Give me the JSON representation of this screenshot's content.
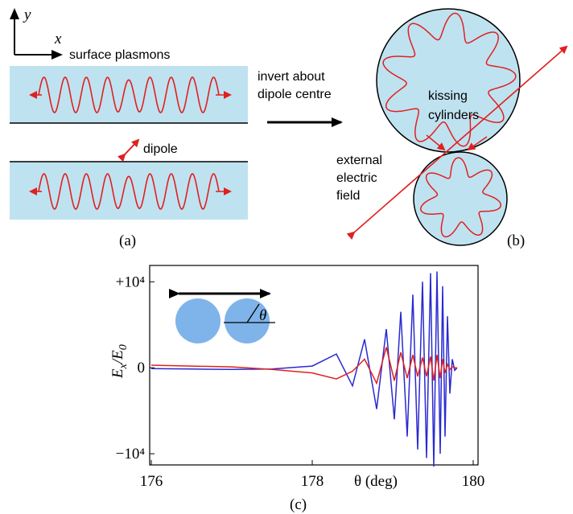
{
  "diagram_a": {
    "axis_y": "y",
    "axis_x": "x",
    "strip_label": "surface plasmons",
    "dipole_label": "dipole",
    "caption": "(a)"
  },
  "arrow_label": [
    "invert about",
    "dipole centre"
  ],
  "diagram_b": {
    "circle_label": [
      "kissing",
      "cylinders"
    ],
    "field_label": [
      "external",
      "electric",
      "field"
    ],
    "caption": "(b)"
  },
  "chart_data": {
    "type": "line",
    "caption": "(c)",
    "inset_label": "θ",
    "xlabel": "θ (deg)",
    "ylabel": [
      "E",
      "x",
      "/E",
      "0"
    ],
    "x": [
      176,
      176.5,
      177,
      177.5,
      178,
      178.3,
      178.5,
      178.65,
      178.8,
      178.92,
      179.02,
      179.1,
      179.18,
      179.25,
      179.31,
      179.37,
      179.42,
      179.47,
      179.51,
      179.55,
      179.59,
      179.62,
      179.65,
      179.68,
      179.71,
      179.74,
      179.77,
      179.8
    ],
    "series": [
      {
        "color": "#2a2ad0",
        "values": [
          -100,
          -150,
          -200,
          -150,
          200,
          1600,
          -2100,
          3300,
          -4800,
          4500,
          -6000,
          6500,
          -8000,
          8500,
          -9500,
          10000,
          -10500,
          11000,
          -11500,
          11200,
          -10000,
          9500,
          -8000,
          6000,
          -3000,
          1000,
          -300,
          0
        ]
      },
      {
        "color": "#e02020",
        "values": [
          300,
          200,
          100,
          -200,
          -600,
          -1300,
          -400,
          1000,
          -1800,
          2400,
          -1500,
          1800,
          -1200,
          1500,
          -1000,
          1200,
          -1000,
          1300,
          -1500,
          1500,
          -1200,
          1000,
          -600,
          400,
          -200,
          100,
          0,
          0
        ]
      }
    ],
    "xlim": [
      175.98,
      180.06
    ],
    "ylim": [
      -11300,
      11900
    ],
    "xticks": [
      176,
      178,
      180
    ],
    "yticks": [
      {
        "value": 10000,
        "label": "+10⁴"
      },
      0,
      {
        "value": -10000,
        "label": "−10⁴"
      }
    ]
  }
}
